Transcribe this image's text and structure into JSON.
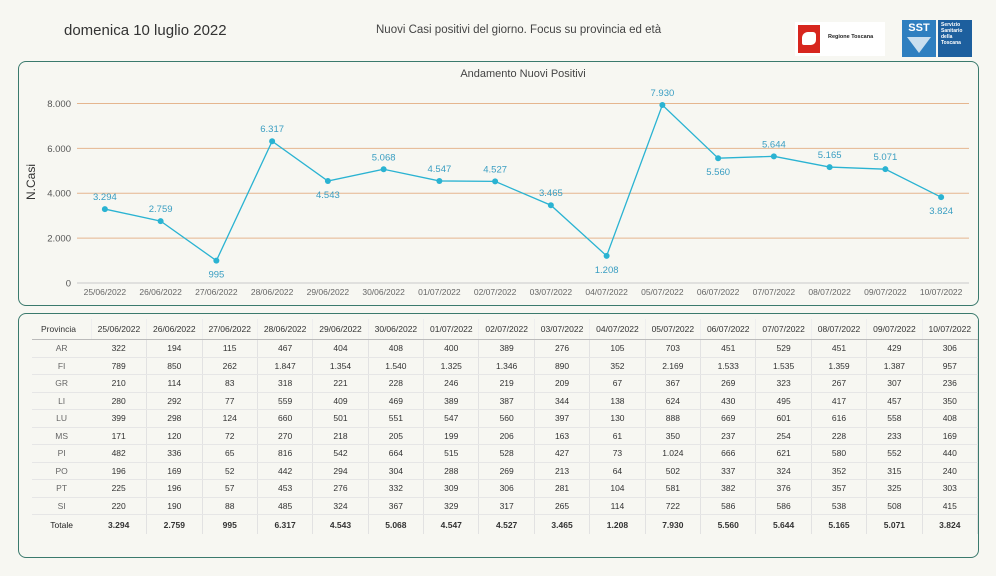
{
  "header": {
    "date": "domenica 10 luglio 2022",
    "subtitle": "Nuovi Casi positivi del giorno. Focus su provincia ed età",
    "logo_left_text": "Regione Toscana",
    "logo_right_mark": "SST",
    "logo_right_lines": [
      "Servizio",
      "Sanitario",
      "della",
      "Toscana"
    ]
  },
  "colors": {
    "line": "#2ab3d2",
    "label": "#3a9ec2",
    "grid": "#e5b68f",
    "border": "#3b7a6d"
  },
  "chart_data": {
    "type": "line",
    "title": "Andamento Nuovi Positivi",
    "ylabel": "N.Casi",
    "xlabel": "",
    "ylim": [
      0,
      9000
    ],
    "yticks": [
      0,
      2000,
      4000,
      6000,
      8000
    ],
    "ytick_labels": [
      "0",
      "2.000",
      "4.000",
      "6.000",
      "8.000"
    ],
    "x": [
      "25/06/2022",
      "26/06/2022",
      "27/06/2022",
      "28/06/2022",
      "29/06/2022",
      "30/06/2022",
      "01/07/2022",
      "02/07/2022",
      "03/07/2022",
      "04/07/2022",
      "05/07/2022",
      "06/07/2022",
      "07/07/2022",
      "08/07/2022",
      "09/07/2022",
      "10/07/2022"
    ],
    "values": [
      3294,
      2759,
      995,
      6317,
      4543,
      5068,
      4547,
      4527,
      3465,
      1208,
      7930,
      5560,
      5644,
      5165,
      5071,
      3824
    ],
    "value_labels": [
      "3.294",
      "2.759",
      "995",
      "6.317",
      "4.543",
      "5.068",
      "4.547",
      "4.527",
      "3.465",
      "1.208",
      "7.930",
      "5.560",
      "5.644",
      "5.165",
      "5.071",
      "3.824"
    ],
    "label_pos": [
      "above",
      "above",
      "below",
      "above",
      "below",
      "above",
      "above",
      "above",
      "above",
      "below",
      "above",
      "below",
      "above",
      "above",
      "above",
      "below"
    ],
    "grid": true
  },
  "table": {
    "corner": "Provincia",
    "columns": [
      "25/06/2022",
      "26/06/2022",
      "27/06/2022",
      "28/06/2022",
      "29/06/2022",
      "30/06/2022",
      "01/07/2022",
      "02/07/2022",
      "03/07/2022",
      "04/07/2022",
      "05/07/2022",
      "06/07/2022",
      "07/07/2022",
      "08/07/2022",
      "09/07/2022",
      "10/07/2022"
    ],
    "rows": [
      {
        "name": "AR",
        "values": [
          "322",
          "194",
          "115",
          "467",
          "404",
          "408",
          "400",
          "389",
          "276",
          "105",
          "703",
          "451",
          "529",
          "451",
          "429",
          "306"
        ]
      },
      {
        "name": "FI",
        "values": [
          "789",
          "850",
          "262",
          "1.847",
          "1.354",
          "1.540",
          "1.325",
          "1.346",
          "890",
          "352",
          "2.169",
          "1.533",
          "1.535",
          "1.359",
          "1.387",
          "957"
        ]
      },
      {
        "name": "GR",
        "values": [
          "210",
          "114",
          "83",
          "318",
          "221",
          "228",
          "246",
          "219",
          "209",
          "67",
          "367",
          "269",
          "323",
          "267",
          "307",
          "236"
        ]
      },
      {
        "name": "LI",
        "values": [
          "280",
          "292",
          "77",
          "559",
          "409",
          "469",
          "389",
          "387",
          "344",
          "138",
          "624",
          "430",
          "495",
          "417",
          "457",
          "350"
        ]
      },
      {
        "name": "LU",
        "values": [
          "399",
          "298",
          "124",
          "660",
          "501",
          "551",
          "547",
          "560",
          "397",
          "130",
          "888",
          "669",
          "601",
          "616",
          "558",
          "408"
        ]
      },
      {
        "name": "MS",
        "values": [
          "171",
          "120",
          "72",
          "270",
          "218",
          "205",
          "199",
          "206",
          "163",
          "61",
          "350",
          "237",
          "254",
          "228",
          "233",
          "169"
        ]
      },
      {
        "name": "PI",
        "values": [
          "482",
          "336",
          "65",
          "816",
          "542",
          "664",
          "515",
          "528",
          "427",
          "73",
          "1.024",
          "666",
          "621",
          "580",
          "552",
          "440"
        ]
      },
      {
        "name": "PO",
        "values": [
          "196",
          "169",
          "52",
          "442",
          "294",
          "304",
          "288",
          "269",
          "213",
          "64",
          "502",
          "337",
          "324",
          "352",
          "315",
          "240"
        ]
      },
      {
        "name": "PT",
        "values": [
          "225",
          "196",
          "57",
          "453",
          "276",
          "332",
          "309",
          "306",
          "281",
          "104",
          "581",
          "382",
          "376",
          "357",
          "325",
          "303"
        ]
      },
      {
        "name": "SI",
        "values": [
          "220",
          "190",
          "88",
          "485",
          "324",
          "367",
          "329",
          "317",
          "265",
          "114",
          "722",
          "586",
          "586",
          "538",
          "508",
          "415"
        ]
      }
    ],
    "total": {
      "name": "Totale",
      "values": [
        "3.294",
        "2.759",
        "995",
        "6.317",
        "4.543",
        "5.068",
        "4.547",
        "4.527",
        "3.465",
        "1.208",
        "7.930",
        "5.560",
        "5.644",
        "5.165",
        "5.071",
        "3.824"
      ]
    }
  }
}
